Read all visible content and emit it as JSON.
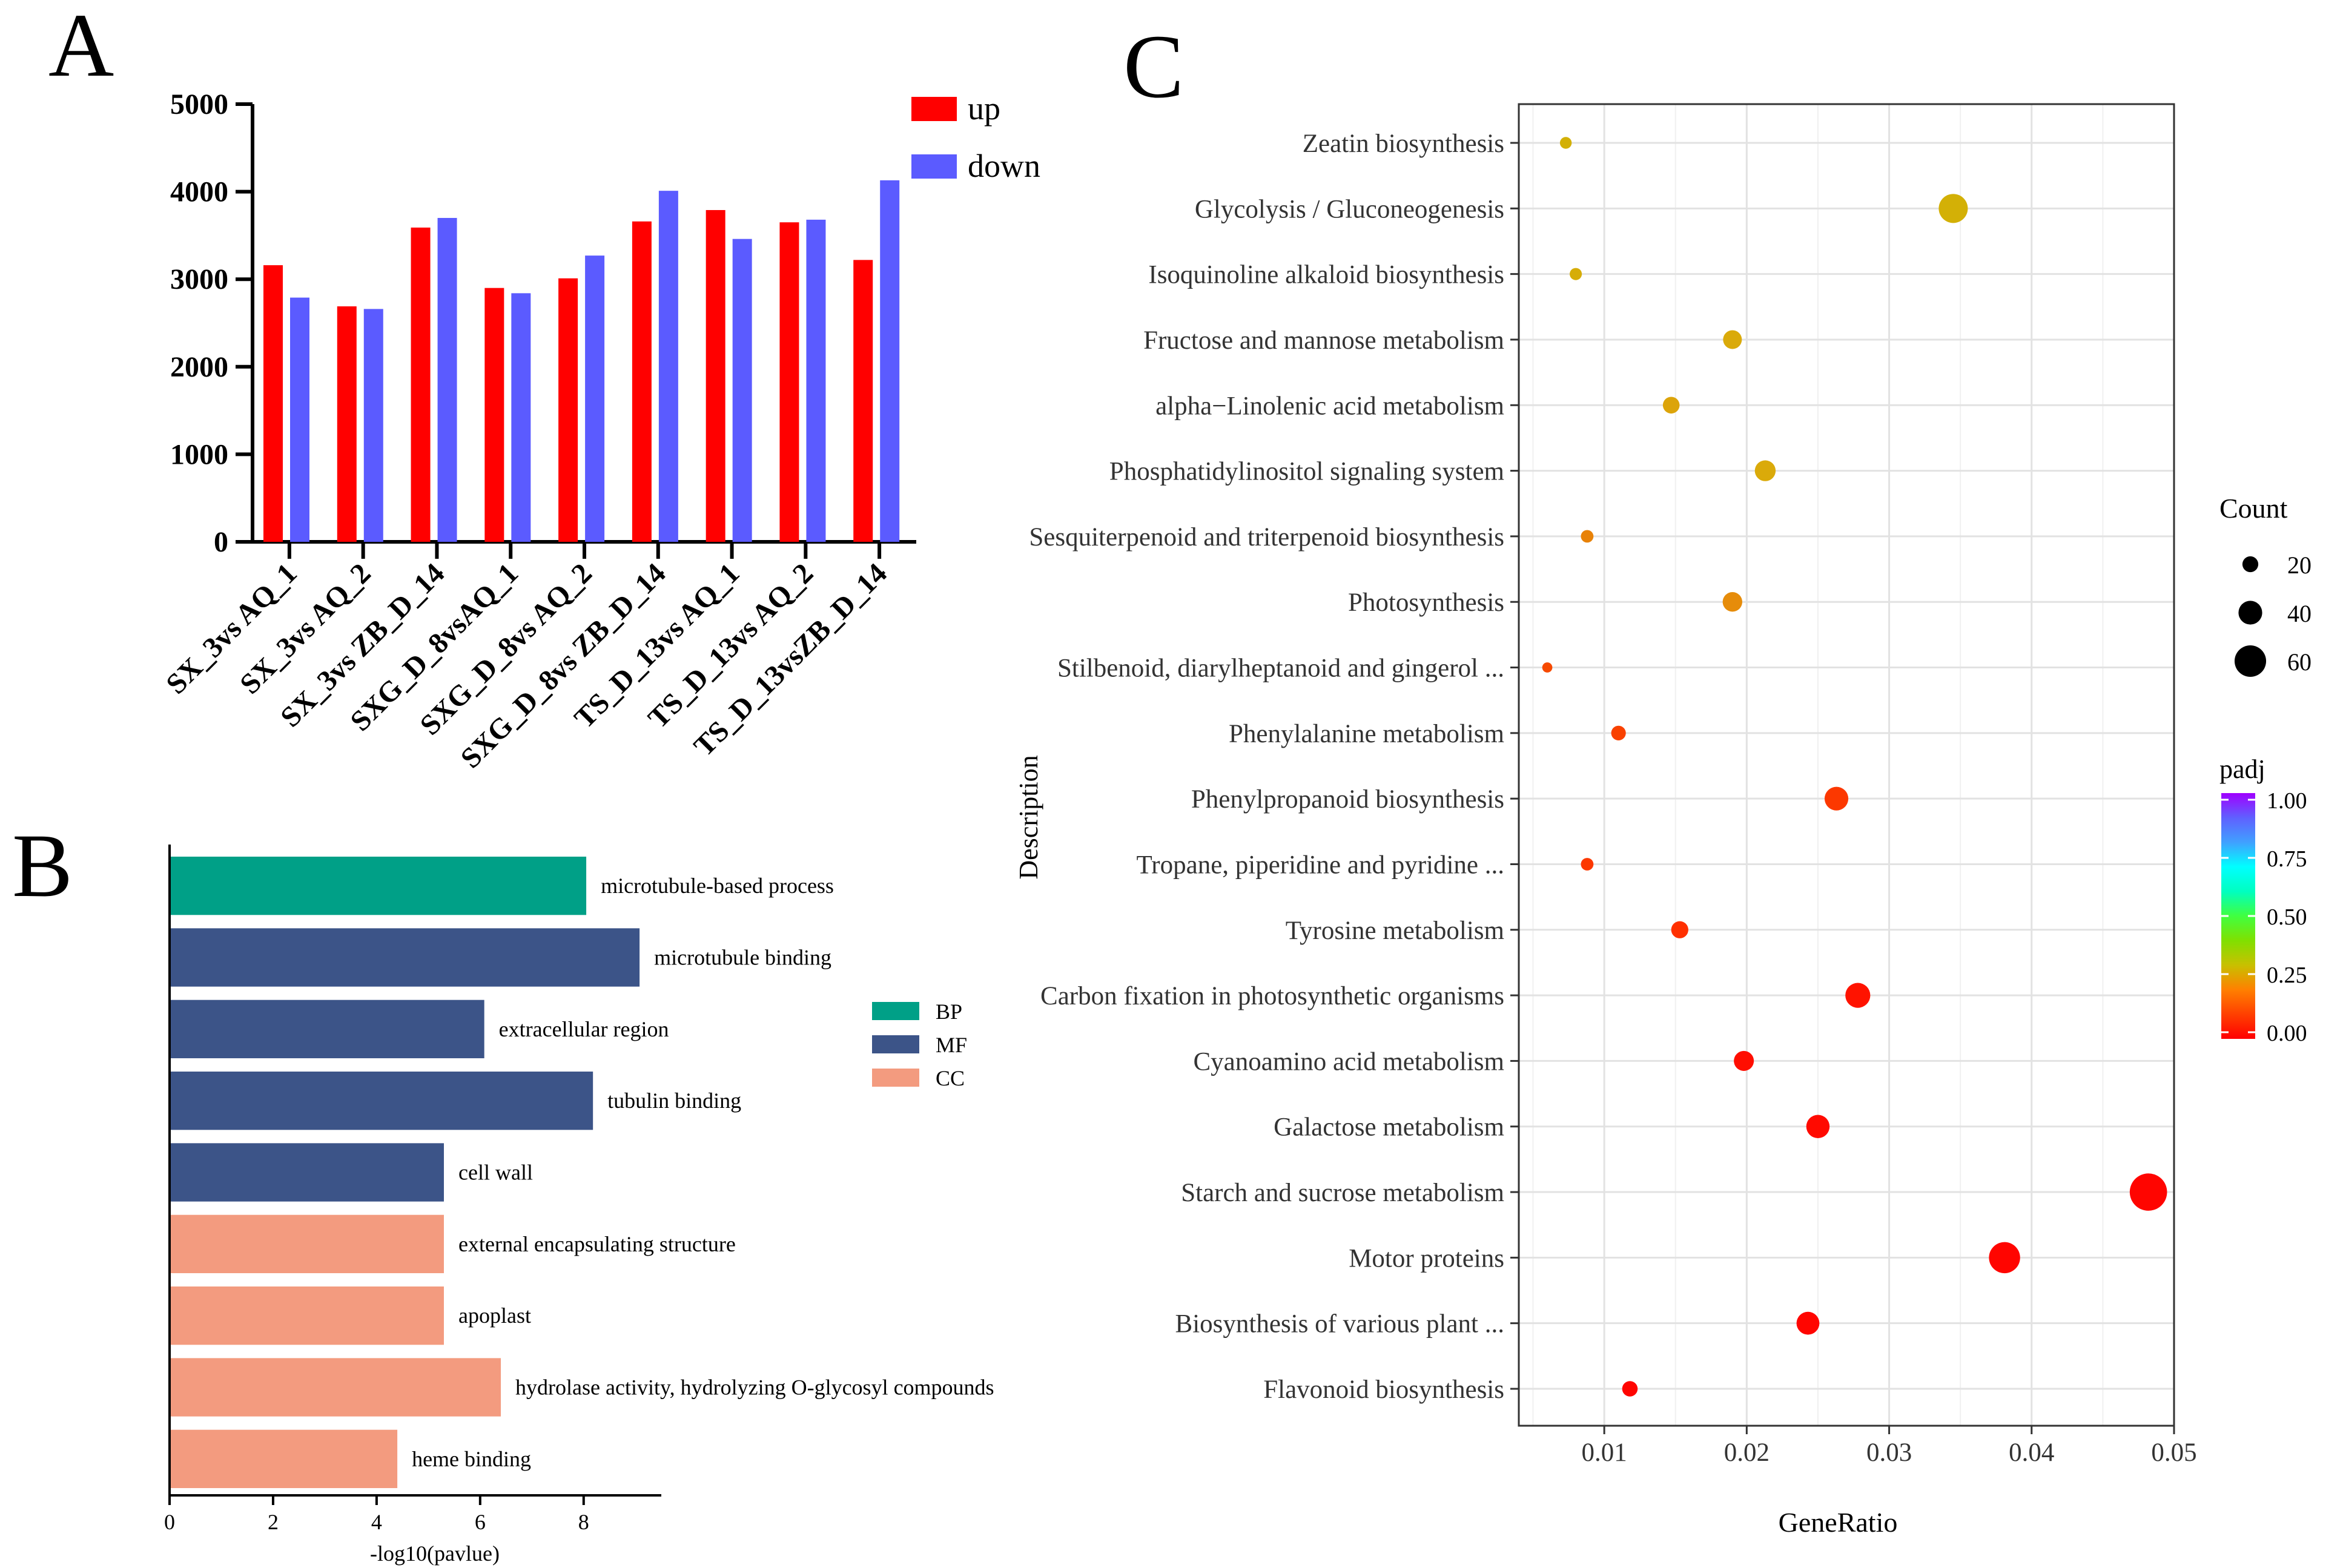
{
  "panels": {
    "a": {
      "label": "A"
    },
    "b": {
      "label": "B"
    },
    "c": {
      "label": "C"
    }
  },
  "colors": {
    "up": "#ff0000",
    "down": "#5b5bff",
    "bp": "#00a087",
    "mf": "#3c5488",
    "cc": "#f39b7f"
  },
  "chart_data": [
    {
      "id": "A",
      "type": "bar",
      "categories": [
        "SX_3vs AQ_1",
        "SX_3vs AQ_2",
        "SX_3vs ZB_D_14",
        "SXG_D_8vsAQ_1",
        "SXG_D_8vs AQ_2",
        "SXG_D_8vs ZB_D_14",
        "TS_D_13vs AQ_1",
        "TS_D_13vs AQ_2",
        "TS_D_13vsZB_D_14"
      ],
      "series": [
        {
          "name": "up",
          "values": [
            3160,
            2690,
            3590,
            2900,
            3010,
            3660,
            3790,
            3650,
            3220
          ]
        },
        {
          "name": "down",
          "values": [
            2790,
            2660,
            3700,
            2840,
            3270,
            4010,
            3460,
            3680,
            4130
          ]
        }
      ],
      "ylim": [
        0,
        5000
      ],
      "yticks": [
        "0",
        "1000",
        "2000",
        "3000",
        "4000",
        "5000"
      ],
      "legend_position": "top-right"
    },
    {
      "id": "B",
      "type": "bar",
      "orientation": "horizontal",
      "categories": [
        "microtubule-based process",
        "microtubule binding",
        "extracellular region",
        "tubulin binding",
        "cell wall",
        "external encapsulating structure",
        "apoplast",
        "hydrolase activity, hydrolyzing O-glycosyl compounds",
        "heme binding"
      ],
      "values": [
        8.05,
        9.08,
        6.08,
        8.18,
        5.3,
        5.3,
        5.3,
        6.4,
        4.4
      ],
      "groups": [
        "BP",
        "MF",
        "MF",
        "MF",
        "MF",
        "CC",
        "CC",
        "CC",
        "CC"
      ],
      "legend": [
        "BP",
        "MF",
        "CC"
      ],
      "xlabel": "-log10(pavlue)",
      "xlim": [
        0,
        9.5
      ],
      "xticks": [
        "0",
        "2",
        "4",
        "6",
        "8"
      ],
      "legend_position": "right"
    },
    {
      "id": "C",
      "type": "scatter",
      "xlabel": "GeneRatio",
      "ylabel": "Description",
      "xlim": [
        0.004,
        0.05
      ],
      "xticks": [
        "0.01",
        "0.02",
        "0.03",
        "0.04",
        "0.05"
      ],
      "grid": true,
      "points": [
        {
          "desc": "Zeatin biosynthesis",
          "x": 0.0073,
          "count": 8,
          "padj": 0.22
        },
        {
          "desc": "Glycolysis / Gluconeogenesis",
          "x": 0.0345,
          "count": 50,
          "padj": 0.22
        },
        {
          "desc": "Isoquinoline alkaloid biosynthesis",
          "x": 0.008,
          "count": 9,
          "padj": 0.21
        },
        {
          "desc": "Fructose and mannose metabolism",
          "x": 0.019,
          "count": 25,
          "padj": 0.2
        },
        {
          "desc": "alpha−Linolenic acid metabolism",
          "x": 0.0147,
          "count": 20,
          "padj": 0.19
        },
        {
          "desc": "Phosphatidylinositol signaling system",
          "x": 0.0213,
          "count": 30,
          "padj": 0.2
        },
        {
          "desc": "Sesquiterpenoid and triterpenoid biosynthesis",
          "x": 0.0088,
          "count": 10,
          "padj": 0.14
        },
        {
          "desc": "Photosynthesis",
          "x": 0.019,
          "count": 27,
          "padj": 0.15
        },
        {
          "desc": "Stilbenoid, diarylheptanoid and gingerol ...",
          "x": 0.006,
          "count": 4,
          "padj": 0.08
        },
        {
          "desc": "Phenylalanine metabolism",
          "x": 0.011,
          "count": 15,
          "padj": 0.07
        },
        {
          "desc": "Phenylpropanoid biosynthesis",
          "x": 0.0263,
          "count": 37,
          "padj": 0.06
        },
        {
          "desc": "Tropane, piperidine and pyridine ...",
          "x": 0.0088,
          "count": 10,
          "padj": 0.06
        },
        {
          "desc": "Tyrosine metabolism",
          "x": 0.0153,
          "count": 21,
          "padj": 0.05
        },
        {
          "desc": "Carbon fixation in photosynthetic organisms",
          "x": 0.0278,
          "count": 40,
          "padj": 0.02
        },
        {
          "desc": "Cyanoamino acid metabolism",
          "x": 0.0198,
          "count": 28,
          "padj": 0.015
        },
        {
          "desc": "Galactose metabolism",
          "x": 0.025,
          "count": 36,
          "padj": 0.01
        },
        {
          "desc": "Starch and sucrose metabolism",
          "x": 0.0482,
          "count": 70,
          "padj": 0.005
        },
        {
          "desc": "Motor proteins",
          "x": 0.0381,
          "count": 55,
          "padj": 0.005
        },
        {
          "desc": "Biosynthesis of various plant ...",
          "x": 0.0243,
          "count": 35,
          "padj": 0.005
        },
        {
          "desc": "Flavonoid biosynthesis",
          "x": 0.0118,
          "count": 17,
          "padj": 0.005
        }
      ],
      "size_legend": {
        "title": "Count",
        "values": [
          20,
          40,
          60
        ]
      },
      "color_legend": {
        "title": "padj",
        "ticks": [
          "1.00",
          "0.75",
          "0.50",
          "0.25",
          "0.00"
        ]
      }
    }
  ]
}
